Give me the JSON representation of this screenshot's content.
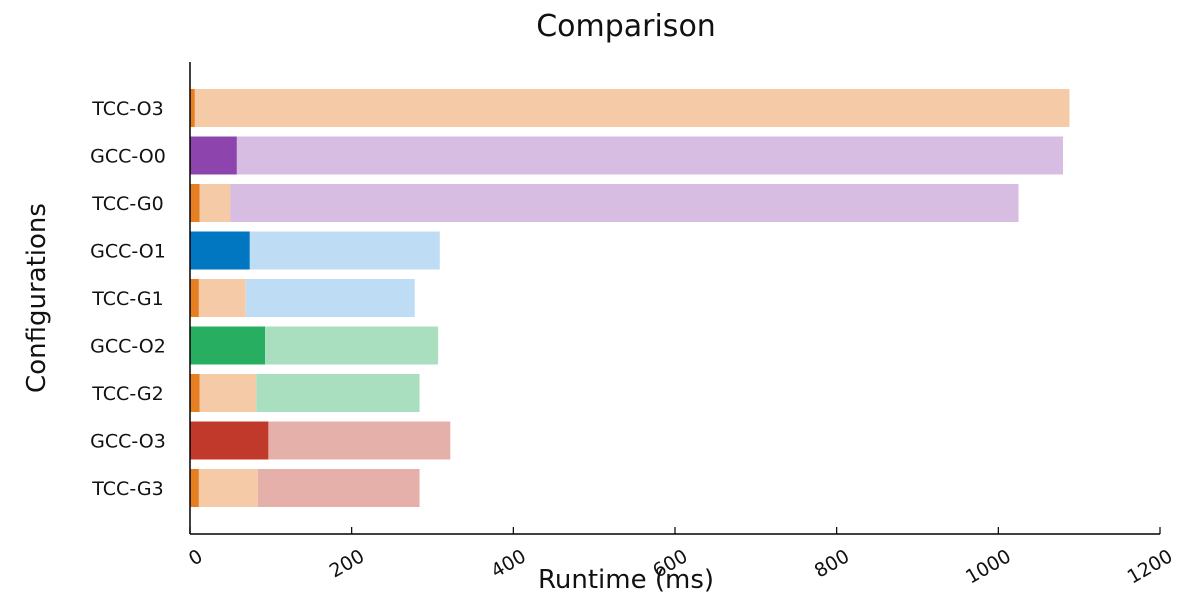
{
  "chart_data": {
    "type": "bar",
    "orientation": "horizontal",
    "stacked": true,
    "title": "Comparison",
    "xlabel": "Runtime (ms)",
    "ylabel": "Configurations",
    "xlim": [
      0,
      1200
    ],
    "xticks": [
      0,
      200,
      400,
      600,
      800,
      1000,
      1200
    ],
    "grid": false,
    "legend": "none",
    "colors": {
      "tcc_dark": "#e67e22",
      "tcc_light": "#f5cba7",
      "gcc_o0_dark": "#8e44ad",
      "gcc_o0_light": "#d7bde2",
      "gcc_o1_dark": "#0077c0",
      "gcc_o1_light": "#bfdcf5",
      "gcc_o2_dark": "#27ae60",
      "gcc_o2_light": "#a9dfbf",
      "gcc_o3_dark": "#c0392b",
      "gcc_o3_light": "#e6b0aa"
    },
    "categories": [
      "TCC-O3",
      "GCC-O0",
      "TCC-G0",
      "GCC-O1",
      "TCC-G1",
      "GCC-O2",
      "TCC-G2",
      "GCC-O3",
      "TCC-G3"
    ],
    "bars": [
      {
        "label": "TCC-O3",
        "segments": [
          {
            "value": 6,
            "color": "tcc_dark"
          },
          {
            "value": 1082,
            "color": "tcc_light"
          }
        ]
      },
      {
        "label": "GCC-O0",
        "segments": [
          {
            "value": 58,
            "color": "gcc_o0_dark"
          },
          {
            "value": 1022,
            "color": "gcc_o0_light"
          }
        ]
      },
      {
        "label": "TCC-G0",
        "segments": [
          {
            "value": 12,
            "color": "tcc_dark"
          },
          {
            "value": 38,
            "color": "tcc_light"
          },
          {
            "value": 975,
            "color": "gcc_o0_light"
          }
        ]
      },
      {
        "label": "GCC-O1",
        "segments": [
          {
            "value": 74,
            "color": "gcc_o1_dark"
          },
          {
            "value": 235,
            "color": "gcc_o1_light"
          }
        ]
      },
      {
        "label": "TCC-G1",
        "segments": [
          {
            "value": 11,
            "color": "tcc_dark"
          },
          {
            "value": 58,
            "color": "tcc_light"
          },
          {
            "value": 209,
            "color": "gcc_o1_light"
          }
        ]
      },
      {
        "label": "GCC-O2",
        "segments": [
          {
            "value": 93,
            "color": "gcc_o2_dark"
          },
          {
            "value": 214,
            "color": "gcc_o2_light"
          }
        ]
      },
      {
        "label": "TCC-G2",
        "segments": [
          {
            "value": 12,
            "color": "tcc_dark"
          },
          {
            "value": 70,
            "color": "tcc_light"
          },
          {
            "value": 202,
            "color": "gcc_o2_light"
          }
        ]
      },
      {
        "label": "GCC-O3",
        "segments": [
          {
            "value": 97,
            "color": "gcc_o3_dark"
          },
          {
            "value": 225,
            "color": "gcc_o3_light"
          }
        ]
      },
      {
        "label": "TCC-G3",
        "segments": [
          {
            "value": 11,
            "color": "tcc_dark"
          },
          {
            "value": 73,
            "color": "tcc_light"
          },
          {
            "value": 200,
            "color": "gcc_o3_light"
          }
        ]
      }
    ]
  }
}
